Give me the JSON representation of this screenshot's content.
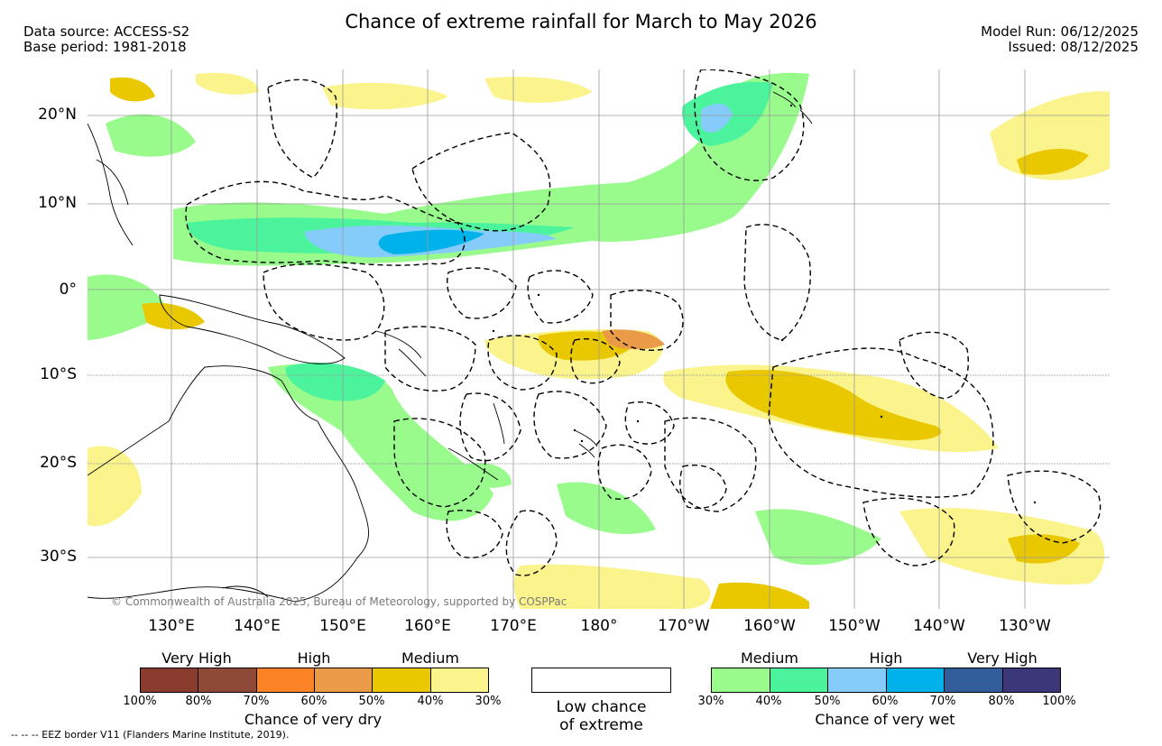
{
  "title": "Chance of extreme rainfall for March to May 2026",
  "meta_left": [
    "Data source: ACCESS-S2",
    "Base period: 1981-2018"
  ],
  "meta_right": [
    "Model Run: 06/12/2025",
    "Issued: 08/12/2025"
  ],
  "lat_labels": [
    "20°N",
    "10°N",
    "0°",
    "10°S",
    "20°S",
    "30°S"
  ],
  "lon_labels": [
    "130°E",
    "140°E",
    "150°E",
    "160°E",
    "170°E",
    "180°",
    "170°W",
    "160°W",
    "150°W",
    "140°W",
    "130°W"
  ],
  "copyright": "© Commonwealth of Australia 2025, Bureau of Meteorology, supported by COSPPac",
  "legend": {
    "dry": {
      "headers": [
        "Very High",
        "High",
        "Medium"
      ],
      "colors": [
        "#8b3a2e",
        "#8e4a36",
        "#fc8325",
        "#ea9b48",
        "#eac800",
        "#fbf38c"
      ],
      "ticks": [
        "100%",
        "80%",
        "70%",
        "60%",
        "50%",
        "40%",
        "30%"
      ],
      "caption": "Chance of very dry"
    },
    "low": {
      "lines": [
        "Low chance",
        "of extreme"
      ]
    },
    "wet": {
      "headers": [
        "Medium",
        "High",
        "Very High"
      ],
      "colors": [
        "#98fb8c",
        "#4bf39c",
        "#86ccfa",
        "#00b2ea",
        "#325e9c",
        "#3c3778"
      ],
      "ticks": [
        "30%",
        "40%",
        "50%",
        "60%",
        "70%",
        "80%",
        "100%"
      ],
      "caption": "Chance of very wet"
    }
  },
  "footnote": "--  --  -- EEZ border V11 (Flanders Marine Institute, 2019)."
}
